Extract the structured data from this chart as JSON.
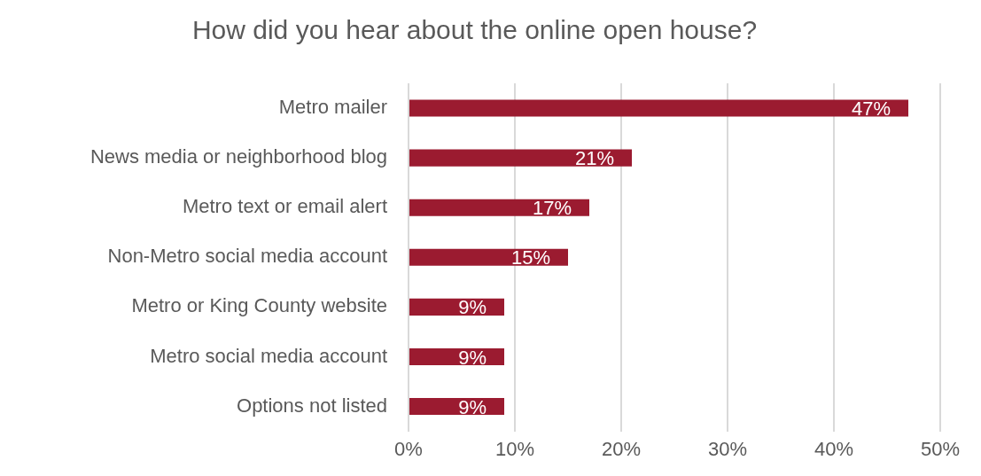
{
  "chart_data": {
    "type": "bar",
    "orientation": "horizontal",
    "title": "How did you hear about the online open house?",
    "categories": [
      "Metro mailer",
      "News media or neighborhood blog",
      "Metro text or email alert",
      "Non-Metro social media account",
      "Metro or King County website",
      "Metro social media account",
      "Options not listed"
    ],
    "values": [
      47,
      21,
      17,
      15,
      9,
      9,
      9
    ],
    "value_labels": [
      "47%",
      "21%",
      "17%",
      "15%",
      "9%",
      "9%",
      "9%"
    ],
    "color": "#9b1b30",
    "xlim": [
      0,
      50
    ],
    "xticks": [
      {
        "value": 0,
        "label": "0%"
      },
      {
        "value": 10,
        "label": "10%"
      },
      {
        "value": 20,
        "label": "20%"
      },
      {
        "value": 30,
        "label": "30%"
      },
      {
        "value": 40,
        "label": "40%"
      },
      {
        "value": 50,
        "label": "50%"
      }
    ],
    "grid": "x",
    "legend": false
  }
}
